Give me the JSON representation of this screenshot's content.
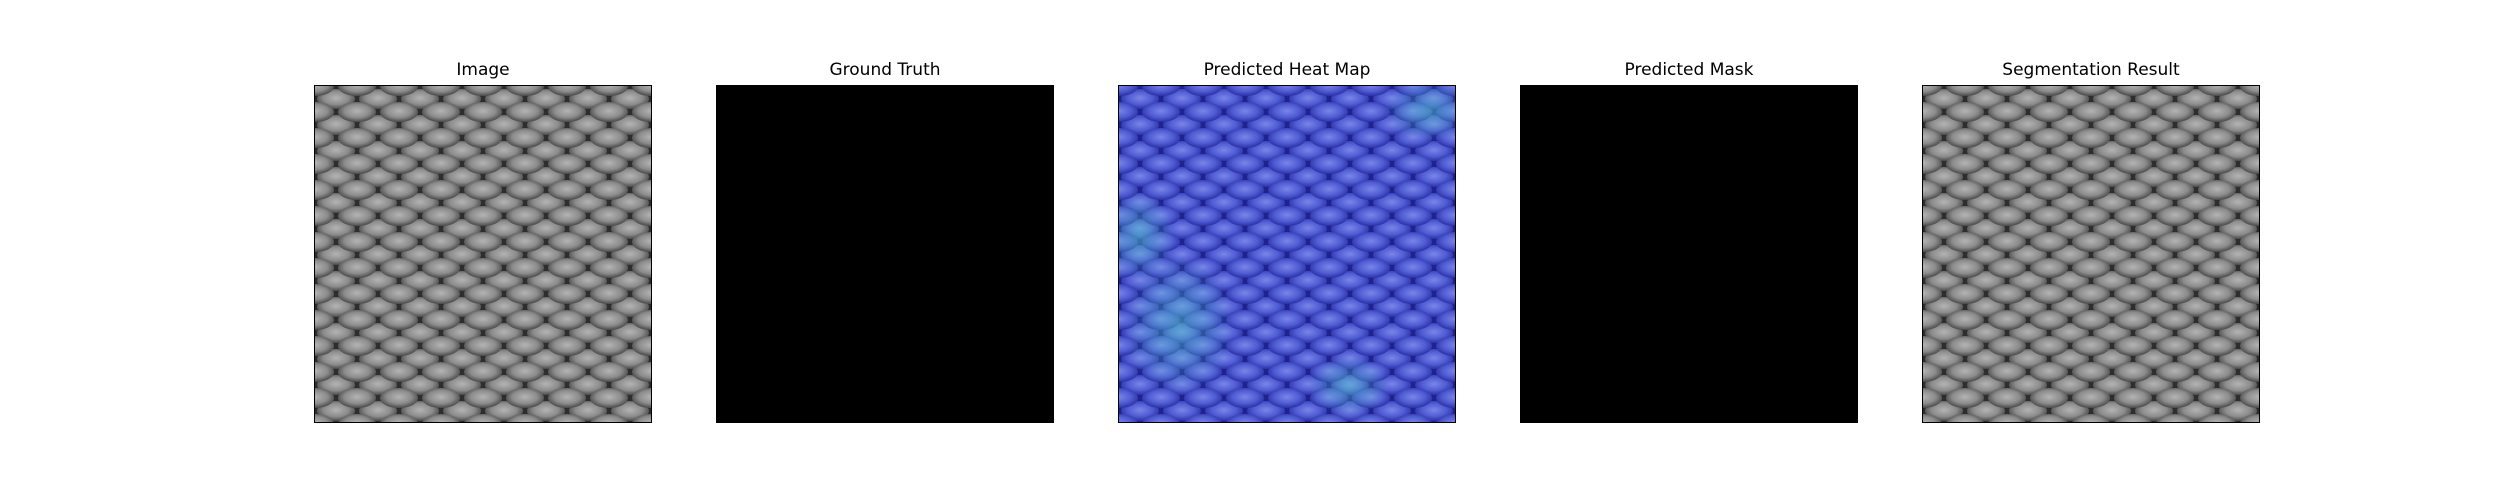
{
  "panels": [
    {
      "id": "image",
      "title": "Image",
      "content": "grayscale-mesh-texture"
    },
    {
      "id": "ground_truth",
      "title": "Ground Truth",
      "content": "solid-black",
      "fill": "#000000"
    },
    {
      "id": "heat_map",
      "title": "Predicted Heat Map",
      "content": "blue-tinted-mesh-texture",
      "tint": "#3a3fd6"
    },
    {
      "id": "predicted_mask",
      "title": "Predicted Mask",
      "content": "solid-black",
      "fill": "#000000"
    },
    {
      "id": "segmentation",
      "title": "Segmentation Result",
      "content": "grayscale-mesh-texture"
    }
  ]
}
